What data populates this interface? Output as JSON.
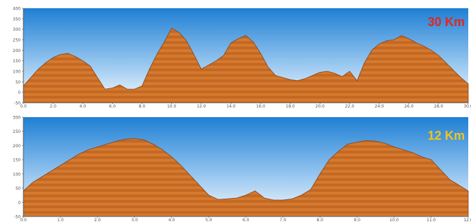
{
  "chart_data": [
    {
      "type": "area",
      "title": "",
      "badge": "30 Km",
      "xlabel": "",
      "ylabel": "",
      "xlim": [
        0,
        30
      ],
      "ylim": [
        -50,
        400
      ],
      "xticks": [
        "0.0",
        "2.0",
        "4.0",
        "6.0",
        "8.0",
        "10.0",
        "12.0",
        "14.0",
        "16.0",
        "18.0",
        "20.0",
        "22.0",
        "24.0",
        "26.0",
        "28.0",
        "30.0"
      ],
      "yticks": [
        "-50",
        "0",
        "50",
        "100",
        "150",
        "200",
        "250",
        "300",
        "350",
        "400"
      ],
      "grid": false,
      "series": [
        {
          "x": [
            0,
            0.5,
            1,
            1.5,
            2,
            2.5,
            3,
            3.5,
            4,
            4.5,
            5,
            5.5,
            6,
            6.5,
            7,
            7.5,
            8,
            8.5,
            9,
            9.5,
            10,
            10.5,
            11,
            11.5,
            12,
            12.5,
            13,
            13.5,
            14,
            14.5,
            15,
            15.5,
            16,
            16.5,
            17,
            17.5,
            18,
            18.5,
            19,
            19.5,
            20,
            20.5,
            21,
            21.5,
            22,
            22.5,
            23,
            23.5,
            24,
            24.5,
            25,
            25.5,
            26,
            26.5,
            27,
            27.5,
            28,
            28.5,
            29,
            29.5,
            30
          ],
          "values": [
            30,
            70,
            110,
            140,
            165,
            180,
            185,
            170,
            150,
            125,
            70,
            15,
            20,
            35,
            15,
            15,
            30,
            110,
            180,
            240,
            305,
            285,
            245,
            180,
            110,
            130,
            150,
            175,
            235,
            255,
            270,
            240,
            185,
            120,
            80,
            70,
            60,
            55,
            65,
            80,
            95,
            100,
            90,
            75,
            100,
            55,
            140,
            200,
            230,
            245,
            250,
            270,
            255,
            235,
            220,
            200,
            175,
            140,
            105,
            70,
            40
          ]
        }
      ]
    },
    {
      "type": "area",
      "title": "",
      "badge": "12 Km",
      "xlabel": "",
      "ylabel": "",
      "xlim": [
        0,
        12
      ],
      "ylim": [
        -50,
        300
      ],
      "xticks": [
        "0.0",
        "1.0",
        "2.0",
        "3.0",
        "4.0",
        "5.0",
        "6.0",
        "7.0",
        "8.0",
        "9.0",
        "10.0",
        "11.0",
        "12.0"
      ],
      "yticks": [
        "-50",
        "0",
        "50",
        "100",
        "150",
        "200",
        "250",
        "300"
      ],
      "grid": false,
      "series": [
        {
          "x": [
            0,
            0.25,
            0.5,
            0.75,
            1,
            1.25,
            1.5,
            1.75,
            2,
            2.25,
            2.5,
            2.75,
            3,
            3.25,
            3.5,
            3.75,
            4,
            4.25,
            4.5,
            4.75,
            5,
            5.25,
            5.5,
            5.75,
            6,
            6.25,
            6.5,
            6.75,
            7,
            7.25,
            7.5,
            7.75,
            8,
            8.25,
            8.5,
            8.75,
            9,
            9.25,
            9.5,
            9.75,
            10,
            10.25,
            10.5,
            10.75,
            11,
            11.25,
            11.5,
            11.75,
            12
          ],
          "values": [
            40,
            70,
            90,
            110,
            130,
            150,
            170,
            185,
            195,
            205,
            215,
            222,
            225,
            220,
            205,
            185,
            160,
            130,
            95,
            60,
            25,
            10,
            12,
            15,
            25,
            40,
            15,
            8,
            8,
            12,
            25,
            45,
            100,
            150,
            180,
            205,
            212,
            218,
            215,
            208,
            195,
            185,
            175,
            160,
            150,
            115,
            80,
            60,
            40
          ]
        }
      ]
    }
  ],
  "colors": {
    "sky_top": "#1f7fd4",
    "sky_bottom": "#f4f9ff",
    "terrain_light": "#d47a2e",
    "terrain_dark": "#a9521a",
    "badge_30": "#e3261c",
    "badge_12": "#f0c419"
  }
}
